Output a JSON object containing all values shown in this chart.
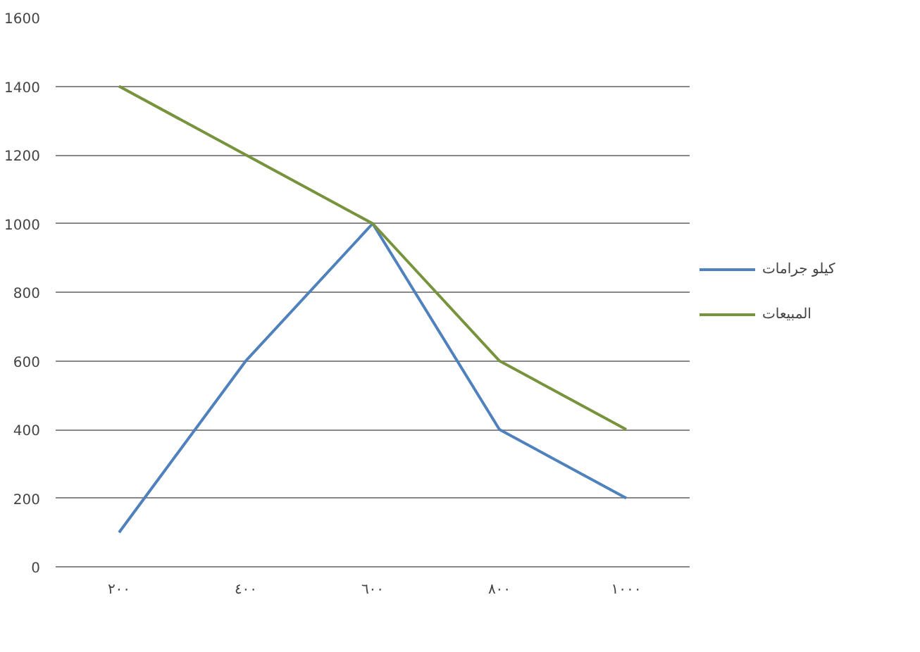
{
  "chart_data": {
    "type": "line",
    "categories": [
      "٢٠٠",
      "٤٠٠",
      "٦٠٠",
      "٨٠٠",
      "١٠٠٠"
    ],
    "series": [
      {
        "name": "كيلو جرامات",
        "color": "#4f81bd",
        "values": [
          100,
          600,
          1000,
          400,
          200
        ]
      },
      {
        "name": "المبيعات",
        "color": "#77933c",
        "values": [
          1400,
          1200,
          1000,
          600,
          400
        ]
      }
    ],
    "ylim": [
      0,
      1600
    ],
    "yticks": [
      0,
      200,
      400,
      600,
      800,
      1000,
      1200,
      1400,
      1600
    ],
    "grid": "y",
    "legend": "right"
  }
}
